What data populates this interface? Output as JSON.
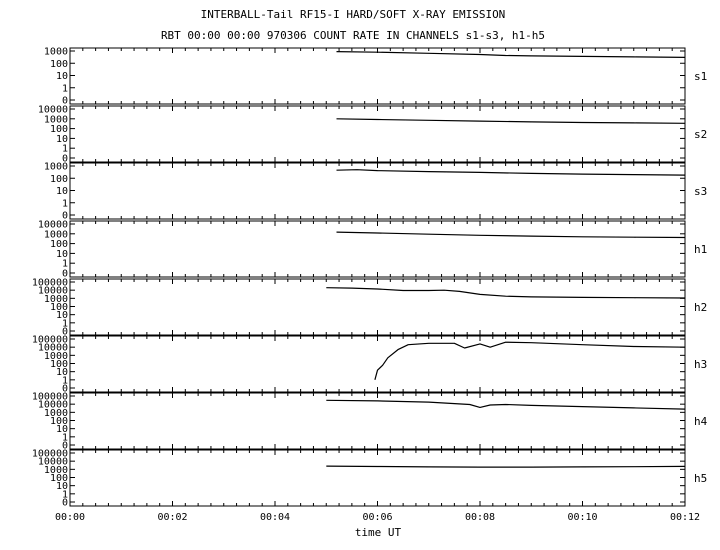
{
  "chart_data": {
    "type": "line",
    "title": "INTERBALL-Tail RF15-I HARD/SOFT X-RAY EMISSION",
    "subtitle": "RBT 00:00 00:00 970306  COUNT RATE IN CHANNELS s1-s3, h1-h5",
    "xlabel": "time UT",
    "x_unit": "minutes",
    "xlim": [
      0,
      12
    ],
    "x_ticks": [
      "00:00",
      "00:02",
      "00:04",
      "00:06",
      "00:08",
      "00:10",
      "00:12"
    ],
    "y_scale": "log",
    "grid": false,
    "panels": [
      {
        "name": "s1",
        "y_ticks": [
          "1000",
          "100",
          "10",
          "1",
          "0"
        ],
        "series": [
          {
            "x": [
              5.2,
              6.0,
              7.0,
              8.0,
              8.5,
              9.0,
              10.0,
              11.0,
              12.0
            ],
            "y": [
              900,
              800,
              650,
              520,
              430,
              400,
              360,
              330,
              300
            ]
          }
        ]
      },
      {
        "name": "s2",
        "y_ticks": [
          "10000",
          "1000",
          "100",
          "10",
          "1",
          "0"
        ],
        "series": [
          {
            "x": [
              5.2,
              6.0,
              7.0,
              8.0,
              9.0,
              10.0,
              11.0,
              12.0
            ],
            "y": [
              1000,
              850,
              700,
              580,
              480,
              420,
              380,
              350
            ]
          }
        ]
      },
      {
        "name": "s3",
        "y_ticks": [
          "1000",
          "100",
          "10",
          "1",
          "0"
        ],
        "series": [
          {
            "x": [
              5.2,
              5.6,
              6.0,
              7.0,
              8.0,
              9.0,
              10.0,
              11.0,
              12.0
            ],
            "y": [
              450,
              500,
              420,
              350,
              300,
              250,
              220,
              200,
              180
            ]
          }
        ]
      },
      {
        "name": "h1",
        "y_ticks": [
          "10000",
          "1000",
          "100",
          "10",
          "1",
          "0"
        ],
        "series": [
          {
            "x": [
              5.2,
              6.0,
              7.0,
              8.0,
              9.0,
              10.0,
              11.0,
              12.0
            ],
            "y": [
              1500,
              1200,
              900,
              700,
              580,
              500,
              450,
              420
            ]
          }
        ]
      },
      {
        "name": "h2",
        "y_ticks": [
          "100000",
          "10000",
          "1000",
          "100",
          "10",
          "1",
          "0"
        ],
        "series": [
          {
            "x": [
              5.0,
              5.5,
              6.0,
              6.5,
              7.0,
              7.3,
              7.6,
              8.0,
              8.5,
              9.0,
              10.0,
              11.0,
              12.0
            ],
            "y": [
              20000,
              18000,
              14000,
              9000,
              9000,
              10000,
              7000,
              3000,
              1800,
              1500,
              1300,
              1200,
              1100
            ]
          }
        ]
      },
      {
        "name": "h3",
        "y_ticks": [
          "100000",
          "10000",
          "1000",
          "100",
          "10",
          "1",
          "0"
        ],
        "series": [
          {
            "x": [
              5.95,
              6.0,
              6.1,
              6.2,
              6.4,
              6.6,
              7.0,
              7.5,
              7.7,
              8.0,
              8.2,
              8.5,
              9.0,
              10.0,
              11.0,
              12.0
            ],
            "y": [
              1,
              15,
              60,
              500,
              5000,
              20000,
              30000,
              30000,
              8000,
              25000,
              10000,
              40000,
              35000,
              20000,
              12000,
              10000
            ]
          }
        ]
      },
      {
        "name": "h4",
        "y_ticks": [
          "100000",
          "10000",
          "1000",
          "100",
          "10",
          "1",
          "0"
        ],
        "series": [
          {
            "x": [
              5.0,
              6.0,
              7.0,
              7.8,
              8.0,
              8.2,
              8.5,
              9.0,
              10.0,
              11.0,
              12.0
            ],
            "y": [
              30000,
              25000,
              18000,
              9000,
              4000,
              8000,
              9000,
              7000,
              5000,
              3500,
              2500
            ]
          }
        ]
      },
      {
        "name": "h5",
        "y_ticks": [
          "100000",
          "10000",
          "1000",
          "100",
          "10",
          "1",
          "0"
        ],
        "series": [
          {
            "x": [
              5.0,
              6.0,
              7.0,
              8.0,
              9.0,
              10.0,
              11.0,
              12.0
            ],
            "y": [
              2500,
              2200,
              2000,
              1900,
              1900,
              2000,
              2100,
              2300
            ]
          }
        ]
      }
    ]
  }
}
